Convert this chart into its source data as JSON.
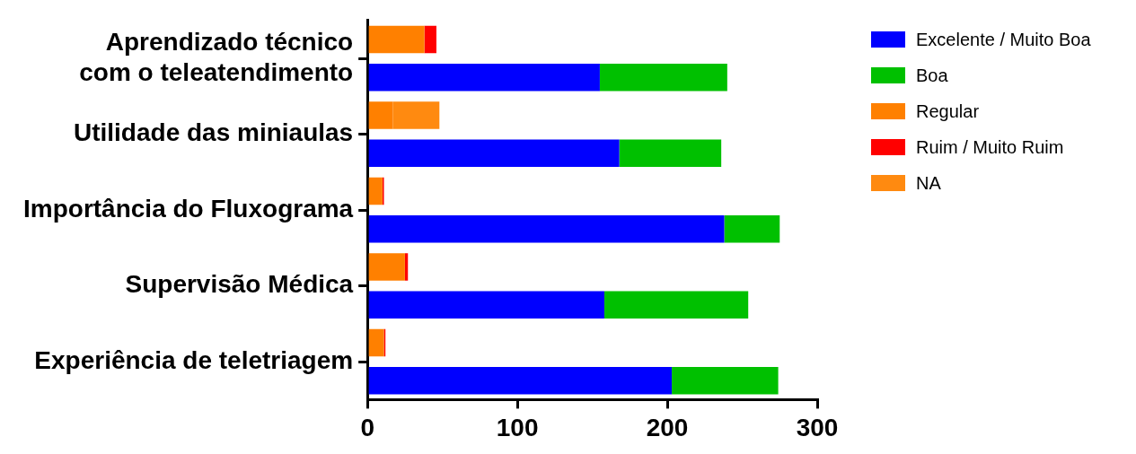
{
  "chart_data": {
    "type": "bar",
    "orientation": "horizontal",
    "stacked": true,
    "categories": [
      null,
      "Aprendizado técnico com o teleatendimento",
      null,
      "Utilidade das miniaulas",
      null,
      "Importância do Fluxograma",
      null,
      "Supervisão Médica",
      null,
      "Experiência de teletriagem"
    ],
    "series": [
      {
        "name": "Excelente / Muito Boa",
        "color": "#0000ff",
        "values": [
          null,
          155,
          null,
          168,
          null,
          238,
          null,
          158,
          null,
          203
        ]
      },
      {
        "name": "Boa",
        "color": "#00c000",
        "values": [
          null,
          85,
          null,
          68,
          null,
          37,
          null,
          96,
          null,
          71
        ]
      },
      {
        "name": "Regular",
        "color": "#ff8000",
        "values": [
          38,
          null,
          17,
          null,
          10,
          null,
          25,
          null,
          11,
          null
        ]
      },
      {
        "name": "Ruim / Muito Ruim",
        "color": "#ff0000",
        "values": [
          8,
          null,
          0,
          null,
          1,
          null,
          2,
          null,
          1,
          null
        ]
      },
      {
        "name": "NA",
        "color": "#ff8a10",
        "values": [
          0,
          null,
          31,
          null,
          0,
          null,
          0,
          null,
          0,
          null
        ]
      }
    ],
    "xlim": [
      0,
      300
    ],
    "xticks": [
      0,
      100,
      200,
      300
    ],
    "grid": false,
    "legend": "top right"
  }
}
